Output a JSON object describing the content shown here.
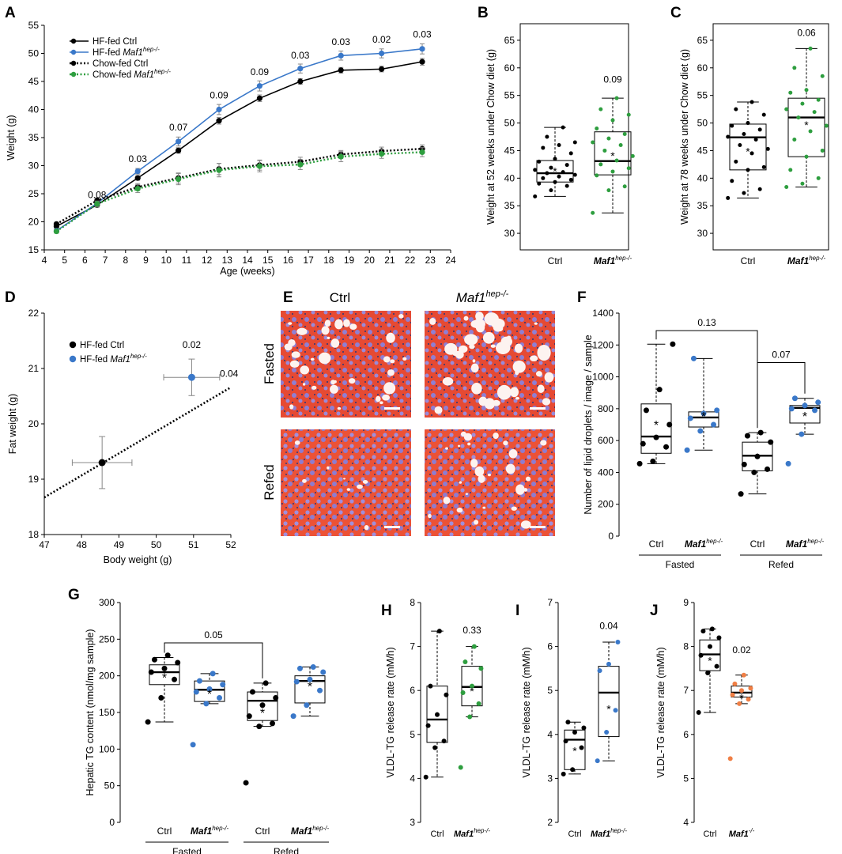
{
  "panels": {
    "A": {
      "label": "A",
      "chart_data": {
        "type": "line",
        "title": "",
        "xlabel": "Age (weeks)",
        "ylabel": "Weight (g)",
        "xlim": [
          4,
          24
        ],
        "ylim": [
          15,
          55
        ],
        "xticks": [
          4,
          5,
          6,
          7,
          8,
          9,
          10,
          11,
          12,
          13,
          14,
          15,
          16,
          17,
          18,
          19,
          20,
          21,
          22,
          23,
          24
        ],
        "yticks": [
          15,
          20,
          25,
          30,
          35,
          40,
          45,
          50,
          55
        ],
        "x": [
          4.6,
          6.6,
          8.6,
          10.6,
          12.6,
          14.6,
          16.6,
          18.6,
          20.6,
          22.6
        ],
        "series": [
          {
            "name": "HF-fed Ctrl",
            "name_base": "HF-fed Ctrl",
            "sup": "",
            "color": "#000000",
            "style": "solid",
            "values": [
              19.2,
              23.0,
              27.8,
              32.7,
              38.0,
              42.0,
              45.0,
              47.0,
              47.2,
              48.5
            ],
            "errors": [
              0.3,
              0.4,
              0.4,
              0.5,
              0.6,
              0.6,
              0.5,
              0.5,
              0.5,
              0.6
            ]
          },
          {
            "name": "HF-fed Maf1hep-/-",
            "name_base": "HF-fed ",
            "italic": "Maf1",
            "sup": "hep-/-",
            "color": "#3a78c9",
            "style": "solid",
            "values": [
              18.4,
              23.3,
              29.0,
              34.3,
              40.0,
              44.2,
              47.3,
              49.6,
              50.0,
              50.8
            ],
            "errors": [
              0.4,
              0.4,
              0.5,
              0.8,
              0.9,
              0.9,
              0.8,
              0.8,
              0.8,
              0.9
            ]
          },
          {
            "name": "Chow-fed Ctrl",
            "name_base": "Chow-fed Ctrl",
            "sup": "",
            "color": "#000000",
            "style": "dotted",
            "values": [
              19.6,
              23.8,
              26.2,
              27.8,
              29.4,
              30.1,
              30.7,
              32.0,
              32.6,
              33.0
            ],
            "errors": [
              0.3,
              0.5,
              0.6,
              0.9,
              1.0,
              0.9,
              0.8,
              0.7,
              0.7,
              0.7
            ]
          },
          {
            "name": "Chow-fed Maf1hep-/-",
            "name_base": "Chow-fed ",
            "italic": "Maf1",
            "sup": "hep-/-",
            "color": "#2e9e3f",
            "style": "dotted",
            "values": [
              18.3,
              23.2,
              25.9,
              27.6,
              29.2,
              29.9,
              30.2,
              31.6,
              32.1,
              32.4
            ],
            "errors": [
              0.3,
              0.5,
              0.7,
              1.0,
              1.2,
              1.0,
              0.9,
              0.9,
              0.8,
              0.8
            ]
          }
        ],
        "annotations": [
          {
            "x": 6.6,
            "y": 24.2,
            "text": "0.08"
          },
          {
            "x": 8.6,
            "y": 30.6,
            "text": "0.03"
          },
          {
            "x": 10.6,
            "y": 36.3,
            "text": "0.07"
          },
          {
            "x": 12.6,
            "y": 42.0,
            "text": "0.09"
          },
          {
            "x": 14.6,
            "y": 46.1,
            "text": "0.09"
          },
          {
            "x": 16.6,
            "y": 49.1,
            "text": "0.03"
          },
          {
            "x": 18.6,
            "y": 51.5,
            "text": "0.03"
          },
          {
            "x": 20.6,
            "y": 51.9,
            "text": "0.02"
          },
          {
            "x": 22.6,
            "y": 52.8,
            "text": "0.03"
          }
        ]
      }
    },
    "B": {
      "label": "B",
      "chart_data": {
        "type": "box",
        "ylabel": "Weight at 52 weeks under Chow diet (g)",
        "ylim": [
          27,
          68
        ],
        "yticks": [
          30,
          35,
          40,
          45,
          50,
          55,
          60,
          65
        ],
        "groups": [
          {
            "label": "Ctrl",
            "italic": false,
            "color": "#000000",
            "min": 36.7,
            "q1": 39.3,
            "median": 40.9,
            "q3": 43.2,
            "max": 49.2,
            "mean": 41.4,
            "points": [
              36.7,
              37.8,
              38.6,
              39.0,
              39.3,
              39.7,
              40.0,
              40.3,
              40.6,
              40.9,
              41.1,
              41.5,
              41.9,
              42.4,
              43.0,
              43.5,
              44.5,
              45.5,
              46.0,
              46.5,
              47.5,
              49.2
            ]
          },
          {
            "label": "Maf1",
            "italic": true,
            "sup": "hep-/-",
            "color": "#2e9e3f",
            "min": 33.7,
            "q1": 40.6,
            "median": 43.1,
            "q3": 48.4,
            "max": 54.5,
            "mean": 44.2,
            "points": [
              33.7,
              37.8,
              38.5,
              40.5,
              41.2,
              41.8,
              42.5,
              43.2,
              44.0,
              45.0,
              46.0,
              46.5,
              47.2,
              48.0,
              49.0,
              50.5,
              51.5,
              52.5,
              54.5
            ]
          }
        ],
        "annotations": [
          {
            "text": "0.09",
            "group": 1,
            "y": 57.3
          }
        ]
      }
    },
    "C": {
      "label": "C",
      "chart_data": {
        "type": "box",
        "ylabel": "Weight at 78 weeks under Chow diet (g)",
        "ylim": [
          27,
          68
        ],
        "yticks": [
          30,
          35,
          40,
          45,
          50,
          55,
          60,
          65
        ],
        "groups": [
          {
            "label": "Ctrl",
            "italic": false,
            "color": "#000000",
            "min": 36.4,
            "q1": 41.5,
            "median": 47.4,
            "q3": 49.8,
            "max": 53.8,
            "mean": 45.0,
            "points": [
              36.4,
              37.3,
              38.0,
              39.5,
              41.5,
              42.0,
              43.0,
              44.5,
              45.3,
              46.0,
              47.0,
              47.5,
              48.0,
              48.8,
              49.5,
              50.0,
              51.5,
              52.5,
              53.8
            ]
          },
          {
            "label": "Maf1",
            "italic": true,
            "sup": "hep-/-",
            "color": "#2e9e3f",
            "min": 38.4,
            "q1": 43.9,
            "median": 51.0,
            "q3": 54.5,
            "max": 63.5,
            "mean": 49.8,
            "points": [
              38.4,
              39.0,
              40.0,
              41.5,
              43.9,
              45.0,
              47.0,
              48.5,
              49.5,
              51.0,
              52.0,
              52.5,
              53.5,
              54.2,
              55.5,
              56.0,
              58.5,
              60.0,
              63.5
            ]
          }
        ],
        "annotations": [
          {
            "text": "0.06",
            "group": 1,
            "y": 65.8
          }
        ]
      }
    },
    "D": {
      "label": "D",
      "chart_data": {
        "type": "scatter",
        "xlabel": "Body weight (g)",
        "ylabel": "Fat weight (g)",
        "xlim": [
          47,
          52
        ],
        "ylim": [
          18,
          22
        ],
        "xticks": [
          47,
          48,
          49,
          50,
          51,
          52
        ],
        "yticks": [
          18,
          19,
          20,
          21,
          22
        ],
        "points": [
          {
            "name": "HF-fed Ctrl",
            "name_base": "HF-fed Ctrl",
            "sup": "",
            "color": "#000000",
            "x": 48.55,
            "y": 19.3,
            "xerr": 0.8,
            "yerr": 0.47
          },
          {
            "name": "HF-fed Maf1hep-/-",
            "name_base": "HF-fed ",
            "italic": "Maf1",
            "sup": "hep-/-",
            "color": "#3a78c9",
            "x": 50.95,
            "y": 20.84,
            "xerr": 0.75,
            "yerr": 0.33
          }
        ],
        "fit_line": {
          "x": [
            47,
            52
          ],
          "y": [
            18.67,
            20.66
          ]
        },
        "annotations": [
          {
            "x": 50.95,
            "y": 21.37,
            "text": "0.02"
          },
          {
            "x": 51.95,
            "y": 20.85,
            "text": "0.04"
          }
        ]
      }
    },
    "E": {
      "label": "E",
      "col_labels": [
        "Ctrl",
        "Maf1"
      ],
      "col_sup": "hep-/-",
      "row_labels": [
        "Fasted",
        "Refed"
      ]
    },
    "F": {
      "label": "F",
      "chart_data": {
        "type": "box",
        "ylabel": "Number of lipid droplets / image / sample",
        "ylim": [
          0,
          1400
        ],
        "yticks": [
          0,
          200,
          400,
          600,
          800,
          1000,
          1200,
          1400
        ],
        "groups": [
          {
            "label": "Ctrl",
            "italic": false,
            "color": "#000000",
            "min": 455,
            "q1": 520,
            "median": 625,
            "q3": 830,
            "max": 1205,
            "mean": 700,
            "points": [
              455,
              470,
              560,
              580,
              620,
              700,
              790,
              920,
              1205
            ]
          },
          {
            "label": "Maf1",
            "italic": true,
            "sup": "hep-/-",
            "color": "#3a78c9",
            "min": 540,
            "q1": 685,
            "median": 745,
            "q3": 780,
            "max": 1115,
            "mean": 755,
            "points": [
              540,
              660,
              700,
              740,
              770,
              790,
              1115
            ]
          },
          {
            "label": "Ctrl",
            "italic": false,
            "color": "#000000",
            "min": 265,
            "q1": 410,
            "median": 505,
            "q3": 590,
            "max": 650,
            "mean": 495,
            "points": [
              265,
              400,
              420,
              450,
              500,
              590,
              630,
              650
            ]
          },
          {
            "label": "Maf1",
            "italic": true,
            "sup": "hep-/-",
            "color": "#3a78c9",
            "min": 640,
            "q1": 710,
            "median": 805,
            "q3": 820,
            "max": 865,
            "mean": 755,
            "points": [
              455,
              640,
              790,
              800,
              820,
              840,
              865
            ]
          }
        ],
        "conditions": [
          "Fasted",
          "Refed"
        ],
        "brackets": [
          {
            "from": 0,
            "to": 2,
            "y": 1290,
            "text": "0.13"
          },
          {
            "from": 2,
            "to": 3,
            "y": 1090,
            "text": "0.07"
          }
        ]
      }
    },
    "G": {
      "label": "G",
      "chart_data": {
        "type": "box",
        "ylabel": "Hepatic TG content (nmol/mg sample)",
        "ylim": [
          0,
          300
        ],
        "yticks": [
          0,
          50,
          100,
          150,
          200,
          250,
          300
        ],
        "groups": [
          {
            "label": "Ctrl",
            "italic": false,
            "color": "#000000",
            "min": 137,
            "q1": 188,
            "median": 205,
            "q3": 215,
            "max": 225,
            "mean": 198,
            "points": [
              137,
              170,
              195,
              205,
              210,
              218,
              222,
              228
            ]
          },
          {
            "label": "Maf1",
            "italic": true,
            "sup": "hep-/-",
            "color": "#3a78c9",
            "min": 162,
            "q1": 165,
            "median": 181,
            "q3": 193,
            "max": 203,
            "mean": 176,
            "points": [
              106,
              162,
              170,
              178,
              182,
              188,
              193,
              203
            ]
          },
          {
            "label": "Ctrl",
            "italic": false,
            "color": "#000000",
            "min": 131,
            "q1": 139,
            "median": 166,
            "q3": 178,
            "max": 190,
            "mean": 150,
            "points": [
              54,
              131,
              135,
              145,
              160,
              170,
              178,
              190
            ]
          },
          {
            "label": "Maf1",
            "italic": true,
            "sup": "hep-/-",
            "color": "#3a78c9",
            "min": 145,
            "q1": 163,
            "median": 193,
            "q3": 200,
            "max": 212,
            "mean": 186,
            "points": [
              145,
              160,
              180,
              192,
              195,
              205,
              210,
              212
            ]
          }
        ],
        "conditions": [
          "Fasted",
          "Refed"
        ],
        "brackets": [
          {
            "from": 0,
            "to": 2,
            "y": 245,
            "text": "0.05"
          }
        ]
      }
    },
    "H": {
      "label": "H",
      "chart_data": {
        "type": "box",
        "ylabel": "VLDL-TG release rate (mM/h)",
        "ylim": [
          3,
          8
        ],
        "yticks": [
          3,
          4,
          5,
          6,
          7,
          8
        ],
        "groups": [
          {
            "label": "Ctrl",
            "italic": false,
            "color": "#000000",
            "min": 4.03,
            "q1": 4.82,
            "median": 5.34,
            "q3": 6.1,
            "max": 7.35,
            "mean": 5.45,
            "points": [
              4.03,
              4.7,
              4.85,
              5.2,
              5.45,
              5.9,
              6.1,
              7.35
            ]
          },
          {
            "label": "Maf1",
            "italic": true,
            "sup": "hep-/-",
            "color": "#2e9e3f",
            "min": 5.4,
            "q1": 5.65,
            "median": 6.08,
            "q3": 6.55,
            "max": 7.0,
            "mean": 6.0,
            "points": [
              4.25,
              5.4,
              5.7,
              5.95,
              6.1,
              6.5,
              6.65,
              7.0
            ]
          }
        ],
        "annotations": [
          {
            "text": "0.33",
            "group": 1,
            "y": 7.3
          }
        ]
      }
    },
    "I": {
      "label": "I",
      "chart_data": {
        "type": "box",
        "ylabel": "VLDL-TG release rate (mM/h)",
        "ylim": [
          2,
          7
        ],
        "yticks": [
          2,
          3,
          4,
          5,
          6,
          7
        ],
        "groups": [
          {
            "label": "Ctrl",
            "italic": false,
            "color": "#000000",
            "min": 3.1,
            "q1": 3.2,
            "median": 3.88,
            "q3": 4.1,
            "max": 4.28,
            "mean": 3.65,
            "points": [
              3.1,
              3.2,
              3.7,
              3.85,
              4.05,
              4.15,
              4.28
            ]
          },
          {
            "label": "Maf1",
            "italic": true,
            "sup": "hep-/-",
            "color": "#3a78c9",
            "min": 3.4,
            "q1": 3.95,
            "median": 4.95,
            "q3": 5.55,
            "max": 6.1,
            "mean": 4.6,
            "points": [
              3.4,
              4.05,
              4.55,
              5.45,
              5.6,
              6.1
            ]
          }
        ],
        "annotations": [
          {
            "text": "0.04",
            "group": 1,
            "y": 6.4
          }
        ]
      }
    },
    "J": {
      "label": "J",
      "chart_data": {
        "type": "box",
        "ylabel": "VLDL-TG release rate (mM/h)",
        "ylim": [
          4,
          9
        ],
        "yticks": [
          4,
          5,
          6,
          7,
          8,
          9
        ],
        "groups": [
          {
            "label": "Ctrl",
            "italic": false,
            "color": "#000000",
            "min": 6.5,
            "q1": 7.45,
            "median": 7.82,
            "q3": 8.15,
            "max": 8.4,
            "mean": 7.7,
            "points": [
              6.5,
              7.4,
              7.55,
              7.8,
              8.0,
              8.2,
              8.35,
              8.4
            ]
          },
          {
            "label": "Maf1",
            "italic": true,
            "sup": "-/-",
            "color": "#f07f45",
            "min": 6.7,
            "q1": 6.85,
            "median": 6.95,
            "q3": 7.1,
            "max": 7.35,
            "mean": 6.85,
            "points": [
              5.45,
              6.7,
              6.8,
              6.9,
              7.0,
              7.05,
              7.15,
              7.35
            ]
          }
        ],
        "annotations": [
          {
            "text": "0.02",
            "group": 1,
            "y": 7.85
          }
        ]
      }
    }
  }
}
